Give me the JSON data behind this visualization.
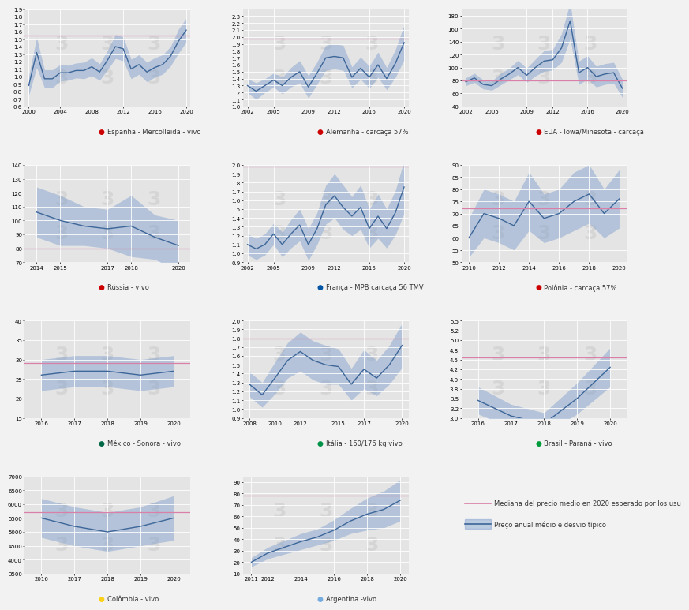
{
  "background_color": "#f2f2f2",
  "plot_bg_color": "#e4e4e4",
  "line_color": "#3d6699",
  "fill_color": "#7a9ccc",
  "fill_alpha": 0.45,
  "median_color": "#d97fa8",
  "watermark_color": "#d0d0d0",
  "subplots": [
    {
      "title": "Espanha - Mercolleida - vivo",
      "flag_color": "#cc0000",
      "years": [
        2000,
        2001,
        2002,
        2003,
        2004,
        2005,
        2006,
        2007,
        2008,
        2009,
        2010,
        2011,
        2012,
        2013,
        2014,
        2015,
        2016,
        2017,
        2018,
        2019,
        2020
      ],
      "mean": [
        0.88,
        1.32,
        0.97,
        0.97,
        1.05,
        1.05,
        1.08,
        1.08,
        1.13,
        1.06,
        1.22,
        1.4,
        1.37,
        1.1,
        1.16,
        1.06,
        1.12,
        1.16,
        1.27,
        1.47,
        1.62
      ],
      "std": [
        0.13,
        0.2,
        0.12,
        0.12,
        0.11,
        0.1,
        0.1,
        0.11,
        0.12,
        0.11,
        0.13,
        0.16,
        0.16,
        0.13,
        0.13,
        0.13,
        0.13,
        0.13,
        0.13,
        0.16,
        0.16
      ],
      "median_line": 1.55,
      "ylim": [
        0.6,
        1.9
      ],
      "ytick_step": 0.1
    },
    {
      "title": "Alemanha - carcaça 57%",
      "flag_color": "#cc0000",
      "years": [
        2002,
        2003,
        2004,
        2005,
        2006,
        2007,
        2008,
        2009,
        2010,
        2011,
        2012,
        2013,
        2014,
        2015,
        2016,
        2017,
        2018,
        2019,
        2020
      ],
      "mean": [
        1.3,
        1.22,
        1.3,
        1.38,
        1.3,
        1.42,
        1.5,
        1.28,
        1.48,
        1.7,
        1.72,
        1.7,
        1.42,
        1.55,
        1.42,
        1.6,
        1.4,
        1.62,
        1.92
      ],
      "std": [
        0.1,
        0.12,
        0.1,
        0.1,
        0.12,
        0.14,
        0.16,
        0.16,
        0.16,
        0.18,
        0.18,
        0.18,
        0.15,
        0.16,
        0.16,
        0.18,
        0.16,
        0.2,
        0.25
      ],
      "median_line": 1.98,
      "ylim": [
        1.0,
        2.4
      ],
      "ytick_step": 0.1
    },
    {
      "title": "EUA - Iowa/Minesota - carcaça",
      "flag_color": "#cc0000",
      "years": [
        2002,
        2003,
        2004,
        2005,
        2006,
        2007,
        2008,
        2009,
        2010,
        2011,
        2012,
        2013,
        2014,
        2015,
        2016,
        2017,
        2018,
        2019,
        2020
      ],
      "mean": [
        78,
        84,
        74,
        72,
        82,
        90,
        100,
        88,
        100,
        110,
        112,
        130,
        172,
        92,
        100,
        86,
        90,
        92,
        68
      ],
      "std": [
        6,
        7,
        7,
        7,
        9,
        9,
        11,
        11,
        13,
        16,
        16,
        22,
        28,
        18,
        18,
        16,
        16,
        16,
        14
      ],
      "median_line": 80,
      "ylim": [
        40,
        190
      ],
      "ytick_step": 20
    },
    {
      "title": "Rússia - vivo",
      "flag_color": "#cc0000",
      "years": [
        2014,
        2015,
        2016,
        2017,
        2018,
        2019,
        2020
      ],
      "mean": [
        106,
        100,
        96,
        94,
        96,
        88,
        82
      ],
      "std": [
        18,
        18,
        14,
        14,
        22,
        16,
        18
      ],
      "median_line": 80,
      "ylim": [
        70,
        140
      ],
      "ytick_step": 10
    },
    {
      "title": "França - MPB carcaça 56 TMV",
      "flag_color": "#0055A4",
      "years": [
        2002,
        2003,
        2004,
        2005,
        2006,
        2007,
        2008,
        2009,
        2010,
        2011,
        2012,
        2013,
        2014,
        2015,
        2016,
        2017,
        2018,
        2019,
        2020
      ],
      "mean": [
        1.1,
        1.05,
        1.1,
        1.22,
        1.1,
        1.22,
        1.32,
        1.1,
        1.28,
        1.55,
        1.65,
        1.52,
        1.42,
        1.52,
        1.28,
        1.42,
        1.28,
        1.46,
        1.75
      ],
      "std": [
        0.12,
        0.12,
        0.12,
        0.12,
        0.14,
        0.16,
        0.18,
        0.18,
        0.18,
        0.22,
        0.25,
        0.25,
        0.22,
        0.25,
        0.22,
        0.25,
        0.22,
        0.25,
        0.3
      ],
      "median_line": 1.98,
      "ylim": [
        0.9,
        2.0
      ],
      "ytick_step": 0.1
    },
    {
      "title": "Polônia - carcaça 57%",
      "flag_color": "#cc0000",
      "years": [
        2010,
        2011,
        2012,
        2013,
        2014,
        2015,
        2016,
        2017,
        2018,
        2019,
        2020
      ],
      "mean": [
        60,
        70,
        68,
        65,
        75,
        68,
        70,
        75,
        78,
        70,
        76
      ],
      "std": [
        8,
        10,
        10,
        10,
        12,
        10,
        10,
        12,
        12,
        10,
        12
      ],
      "median_line": 72,
      "ylim": [
        50,
        90
      ],
      "ytick_step": 5
    },
    {
      "title": "México - Sonora - vivo",
      "flag_color": "#006847",
      "years": [
        2016,
        2017,
        2018,
        2019,
        2020
      ],
      "mean": [
        26,
        27,
        27,
        26,
        27
      ],
      "std": [
        4,
        4,
        4,
        4,
        4
      ],
      "median_line": 29,
      "ylim": [
        15,
        40
      ],
      "ytick_step": 5
    },
    {
      "title": "Itália - 160/176 kg vivo",
      "flag_color": "#009246",
      "years": [
        2008,
        2009,
        2010,
        2011,
        2012,
        2013,
        2014,
        2015,
        2016,
        2017,
        2018,
        2019,
        2020
      ],
      "mean": [
        1.28,
        1.16,
        1.35,
        1.55,
        1.65,
        1.55,
        1.5,
        1.48,
        1.28,
        1.45,
        1.35,
        1.5,
        1.72
      ],
      "std": [
        0.14,
        0.14,
        0.18,
        0.2,
        0.22,
        0.22,
        0.22,
        0.2,
        0.18,
        0.22,
        0.2,
        0.22,
        0.25
      ],
      "median_line": 1.8,
      "ylim": [
        0.9,
        2.0
      ],
      "ytick_step": 0.1
    },
    {
      "title": "Brasil - Paraná - vivo",
      "flag_color": "#009c3b",
      "years": [
        2016,
        2017,
        2018,
        2019,
        2020
      ],
      "mean": [
        3.45,
        3.05,
        2.85,
        3.5,
        4.3
      ],
      "std": [
        0.35,
        0.3,
        0.28,
        0.4,
        0.5
      ],
      "median_line": 4.55,
      "ylim": [
        3.0,
        5.5
      ],
      "ytick_step": 0.25
    },
    {
      "title": "Colômbia - vivo",
      "flag_color": "#FCD116",
      "years": [
        2016,
        2017,
        2018,
        2019,
        2020
      ],
      "mean": [
        5500,
        5200,
        5000,
        5200,
        5500
      ],
      "std": [
        700,
        700,
        700,
        700,
        800
      ],
      "median_line": 5700,
      "ylim": [
        3500,
        7000
      ],
      "ytick_step": 500
    },
    {
      "title": "Argentina -vivo",
      "flag_color": "#74ACDF",
      "years": [
        2011,
        2012,
        2013,
        2014,
        2015,
        2016,
        2017,
        2018,
        2019,
        2020
      ],
      "mean": [
        20,
        28,
        33,
        38,
        42,
        48,
        56,
        62,
        66,
        74
      ],
      "std": [
        4,
        5,
        6,
        7,
        7,
        9,
        11,
        14,
        16,
        18
      ],
      "median_line": 78,
      "ylim": [
        10,
        95
      ],
      "ytick_step": 10
    }
  ],
  "legend_median_label": "Mediana del precio medio en 2020 esperado por los usu",
  "legend_fill_label": "Preço anual médio e desvio típico"
}
